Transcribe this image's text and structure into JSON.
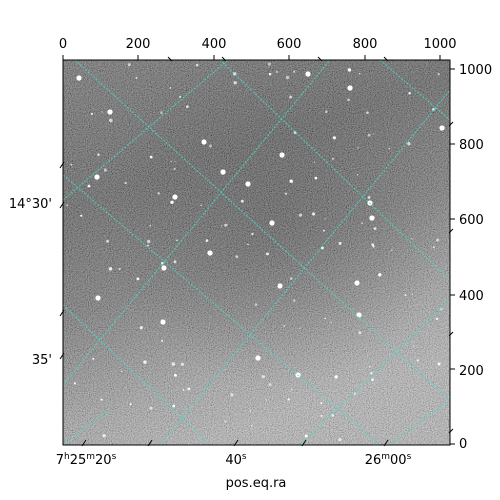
{
  "figure": {
    "xlabel": "pos.eq.ra",
    "top_ticks": [
      "0",
      "200",
      "400",
      "600",
      "800",
      "1000"
    ],
    "right_ticks": [
      "0",
      "200",
      "400",
      "600",
      "800",
      "1000"
    ],
    "left_ticks": [
      "14°30'",
      "35'"
    ],
    "bottom_ticks": [
      {
        "base": "7",
        "sup1": "h",
        "mid1": "25",
        "sup2": "m",
        "mid2": "20",
        "sup3": "s"
      },
      {
        "base": "40",
        "sup1": "s"
      },
      {
        "base": "26",
        "sup1": "m",
        "mid1": "00",
        "sup2": "s"
      }
    ],
    "grid_color": "#40e0d0"
  }
}
